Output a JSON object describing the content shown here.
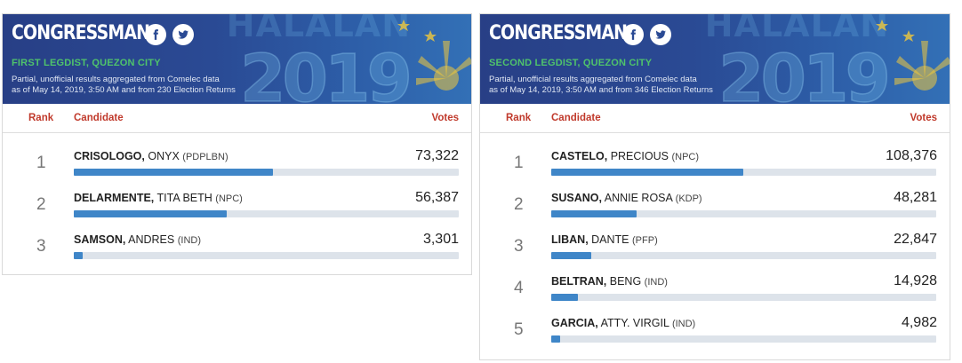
{
  "cards": [
    {
      "title": "CONGRESSMAN",
      "district": "FIRST LEGDIST, QUEZON CITY",
      "note_line1": "Partial, unofficial results aggregated from Comelec data",
      "note_line2": "as of May 14, 2019, 3:50 AM and from 230 Election Returns",
      "watermark_word": "HALALAN",
      "watermark_year": "2019",
      "headers": {
        "rank": "Rank",
        "candidate": "Candidate",
        "votes": "Votes"
      },
      "candidates": [
        {
          "rank": "1",
          "last": "CRISOLOGO,",
          "first": "ONYX",
          "party": "(PDPLBN)",
          "votes": "73,322",
          "share": 0.517
        },
        {
          "rank": "2",
          "last": "DELARMENTE,",
          "first": "TITA BETH",
          "party": "(NPC)",
          "votes": "56,387",
          "share": 0.398
        },
        {
          "rank": "3",
          "last": "SAMSON,",
          "first": "ANDRES",
          "party": "(IND)",
          "votes": "3,301",
          "share": 0.023
        }
      ]
    },
    {
      "title": "CONGRESSMAN",
      "district": "SECOND LEGDIST, QUEZON CITY",
      "note_line1": "Partial, unofficial results aggregated from Comelec data",
      "note_line2": "as of May 14, 2019, 3:50 AM and from 346 Election Returns",
      "watermark_word": "HALALAN",
      "watermark_year": "2019",
      "headers": {
        "rank": "Rank",
        "candidate": "Candidate",
        "votes": "Votes"
      },
      "candidates": [
        {
          "rank": "1",
          "last": "CASTELO,",
          "first": "PRECIOUS",
          "party": "(NPC)",
          "votes": "108,376",
          "share": 0.499
        },
        {
          "rank": "2",
          "last": "SUSANO,",
          "first": "ANNIE ROSA",
          "party": "(KDP)",
          "votes": "48,281",
          "share": 0.222
        },
        {
          "rank": "3",
          "last": "LIBAN,",
          "first": "DANTE",
          "party": "(PFP)",
          "votes": "22,847",
          "share": 0.105
        },
        {
          "rank": "4",
          "last": "BELTRAN,",
          "first": "BENG",
          "party": "(IND)",
          "votes": "14,928",
          "share": 0.069
        },
        {
          "rank": "5",
          "last": "GARCIA,",
          "first": "ATTY. VIRGIL",
          "party": "(IND)",
          "votes": "4,982",
          "share": 0.023
        }
      ]
    }
  ],
  "icons": {
    "facebook": "facebook-icon",
    "twitter": "twitter-icon"
  },
  "colors": {
    "banner": "#2a4a94",
    "district": "#4fc36b",
    "header_text": "#c0392b",
    "bar_fill": "#3f86c8",
    "bar_track": "#dde3ea"
  }
}
